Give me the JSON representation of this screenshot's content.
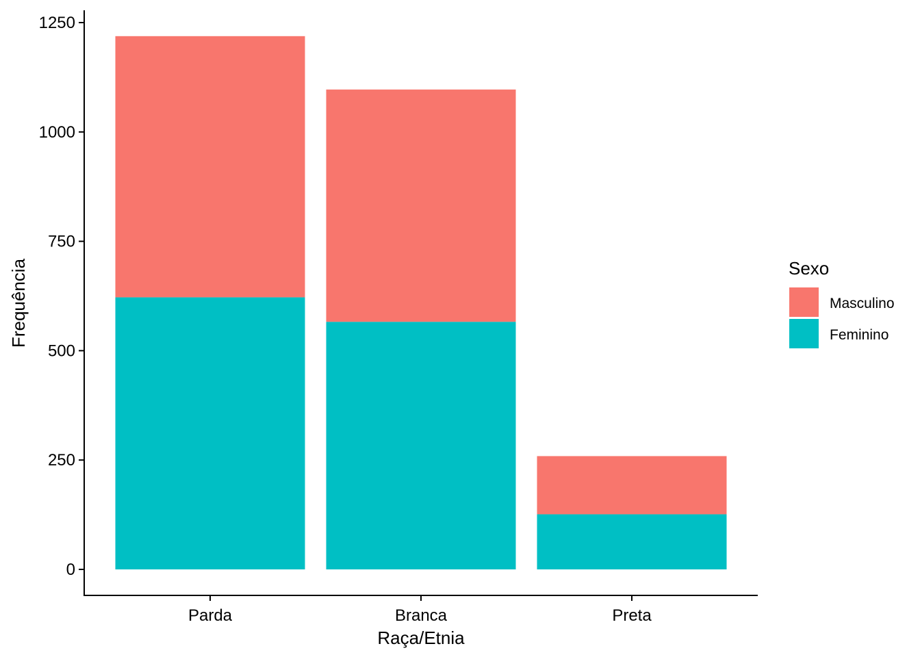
{
  "chart_data": {
    "type": "bar",
    "stacked": true,
    "categories": [
      "Parda",
      "Branca",
      "Preta"
    ],
    "series": [
      {
        "name": "Feminino",
        "values": [
          622,
          566,
          126
        ],
        "color": "#00BFC4"
      },
      {
        "name": "Masculino",
        "values": [
          597,
          531,
          133
        ],
        "color": "#F8766D"
      }
    ],
    "xlabel": "Raça/Etnia",
    "ylabel": "Frequência",
    "ylim": [
      0,
      1250
    ],
    "yticks": [
      0,
      250,
      500,
      750,
      1000,
      1250
    ],
    "grid": false,
    "legend": {
      "title": "Sexo",
      "position": "right",
      "entries": [
        {
          "label": "Masculino",
          "color": "#F8766D"
        },
        {
          "label": "Feminino",
          "color": "#00BFC4"
        }
      ]
    }
  }
}
